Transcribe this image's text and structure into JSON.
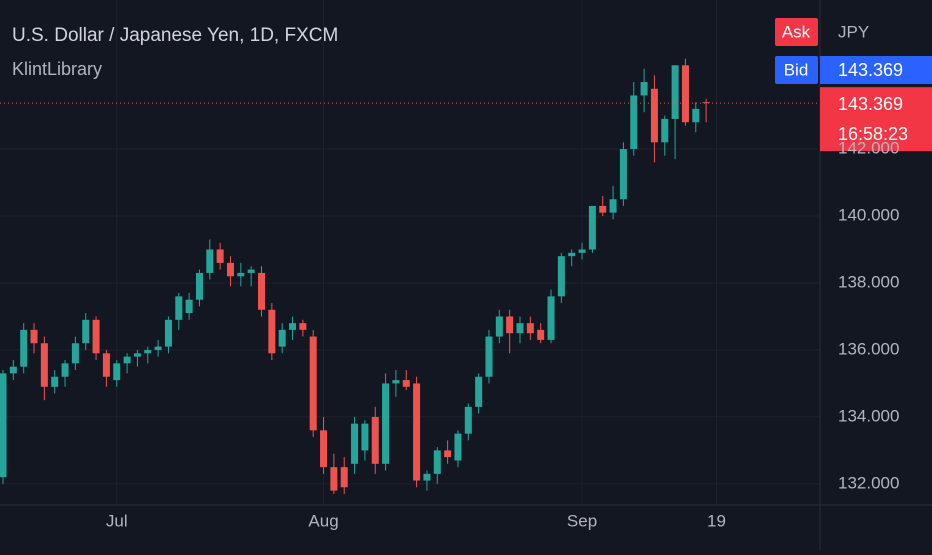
{
  "chart_data": {
    "type": "candlestick",
    "title": "U.S. Dollar / Japanese Yen, 1D, FXCM",
    "subtitle": "KlintLibrary",
    "currency": "JPY",
    "ask_label": "Ask",
    "bid_label": "Bid",
    "bid": 143.369,
    "last_price": 143.369,
    "countdown": "16:58:23",
    "up_color": "#26a69a",
    "down_color": "#ef5350",
    "grid": true,
    "ylim": [
      131.37,
      146.45
    ],
    "yticks": [
      {
        "value": 132,
        "label": "132.000"
      },
      {
        "value": 134,
        "label": "134.000"
      },
      {
        "value": 136,
        "label": "136.000"
      },
      {
        "value": 138,
        "label": "138.000"
      },
      {
        "value": 140,
        "label": "140.000"
      },
      {
        "value": 142,
        "label": "142.000"
      }
    ],
    "categories": [
      null,
      null,
      null,
      null,
      null,
      null,
      null,
      null,
      null,
      null,
      null,
      "Jul",
      null,
      null,
      null,
      null,
      null,
      null,
      null,
      null,
      null,
      null,
      null,
      null,
      null,
      null,
      null,
      null,
      null,
      null,
      null,
      "Aug",
      null,
      null,
      null,
      null,
      null,
      null,
      null,
      null,
      null,
      null,
      null,
      null,
      null,
      null,
      null,
      null,
      null,
      null,
      null,
      null,
      null,
      null,
      null,
      null,
      "Sep",
      null,
      null,
      null,
      null,
      null,
      null,
      null,
      null,
      null,
      null,
      null,
      null,
      "19"
    ],
    "open": [
      132.2,
      135.3,
      135.5,
      136.6,
      136.2,
      134.9,
      135.2,
      135.6,
      136.2,
      136.9,
      135.9,
      135.1,
      135.6,
      135.8,
      135.9,
      136.0,
      136.1,
      136.9,
      137.1,
      137.5,
      138.3,
      139.0,
      138.6,
      138.2,
      138.3,
      138.3,
      137.2,
      136.1,
      136.6,
      136.8,
      136.4,
      133.6,
      132.5,
      132.5,
      132.6,
      133.0,
      134.0,
      132.6,
      135.0,
      135.1,
      135.0,
      132.1,
      132.3,
      133.0,
      132.7,
      133.5,
      134.3,
      135.2,
      136.4,
      137.0,
      136.5,
      136.8,
      136.6,
      136.3,
      137.6,
      138.8,
      138.9,
      139.0,
      140.3,
      140.1,
      140.5,
      142.0,
      143.6,
      143.8,
      142.2,
      142.9,
      144.5,
      142.8,
      143.4,
      null
    ],
    "high": [
      135.4,
      135.7,
      136.8,
      136.8,
      136.4,
      135.4,
      135.7,
      136.4,
      137.1,
      137.0,
      136.0,
      135.7,
      135.9,
      136.0,
      136.1,
      136.3,
      137.0,
      137.7,
      137.7,
      138.4,
      139.3,
      139.2,
      138.8,
      138.6,
      138.5,
      138.5,
      137.4,
      136.8,
      137.0,
      136.9,
      136.6,
      134.0,
      132.9,
      132.8,
      134.0,
      133.9,
      134.3,
      135.3,
      135.4,
      135.4,
      135.2,
      132.4,
      133.1,
      133.3,
      133.6,
      134.4,
      135.3,
      136.6,
      137.2,
      137.2,
      137.0,
      137.0,
      136.8,
      137.8,
      138.9,
      139.0,
      139.2,
      140.3,
      140.6,
      140.9,
      142.2,
      144.0,
      144.4,
      144.2,
      143.0,
      144.5,
      144.7,
      143.4,
      143.5,
      null
    ],
    "low": [
      132.0,
      135.1,
      135.3,
      135.9,
      134.5,
      134.7,
      134.9,
      135.4,
      136.0,
      135.7,
      134.9,
      134.9,
      135.3,
      135.5,
      135.6,
      135.8,
      135.9,
      136.6,
      136.9,
      137.3,
      138.1,
      138.4,
      137.9,
      137.9,
      137.9,
      137.0,
      135.7,
      135.9,
      136.3,
      136.4,
      133.4,
      132.3,
      131.7,
      131.7,
      132.3,
      132.7,
      132.3,
      132.4,
      134.6,
      134.8,
      131.9,
      131.8,
      132.0,
      132.6,
      132.5,
      133.3,
      134.1,
      135.0,
      136.2,
      135.9,
      136.2,
      136.3,
      136.2,
      136.2,
      137.4,
      138.5,
      138.7,
      138.9,
      140.0,
      139.9,
      140.3,
      141.8,
      143.1,
      141.6,
      141.8,
      141.7,
      142.7,
      142.5,
      142.8,
      null
    ],
    "close": [
      135.3,
      135.5,
      136.6,
      136.2,
      134.9,
      135.2,
      135.6,
      136.2,
      136.9,
      135.9,
      135.2,
      135.6,
      135.8,
      135.9,
      136.0,
      136.1,
      136.9,
      137.6,
      137.5,
      138.3,
      139.0,
      138.6,
      138.2,
      138.3,
      138.4,
      137.2,
      135.9,
      136.6,
      136.8,
      136.6,
      133.6,
      132.5,
      131.8,
      131.9,
      133.8,
      133.8,
      132.6,
      135.0,
      135.1,
      134.9,
      132.1,
      132.3,
      133.0,
      132.8,
      133.5,
      134.3,
      135.2,
      136.4,
      137.0,
      136.5,
      136.8,
      136.5,
      136.3,
      137.6,
      138.8,
      138.9,
      139.0,
      140.3,
      140.1,
      140.5,
      142.0,
      143.6,
      144.0,
      142.2,
      142.9,
      144.5,
      142.8,
      143.2,
      143.37,
      null
    ]
  }
}
